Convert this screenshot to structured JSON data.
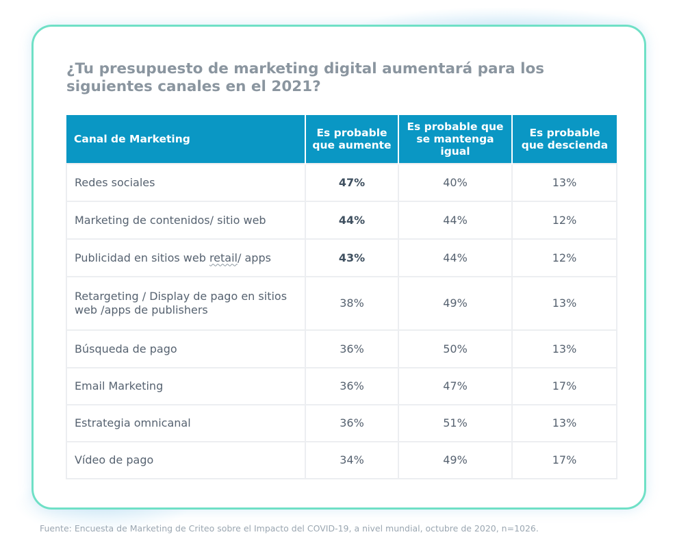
{
  "chart_data": {
    "type": "table",
    "title": "¿Tu presupuesto de marketing digital aumentará para los siguientes canales en el 2021?",
    "columns": [
      "Canal de Marketing",
      "Es probable que aumente",
      "Es probable que se mantenga igual",
      "Es probable que descienda"
    ],
    "rows": [
      {
        "canal": "Redes sociales",
        "aumente": "47%",
        "igual": "40%",
        "descienda": "13%",
        "highlight": true
      },
      {
        "canal": "Marketing de contenidos/ sitio web",
        "aumente": "44%",
        "igual": "44%",
        "descienda": "12%",
        "highlight": true
      },
      {
        "canal": "Publicidad en sitios web retail/ apps",
        "aumente": "43%",
        "igual": "44%",
        "descienda": "12%",
        "highlight": true
      },
      {
        "canal": "Retargeting / Display de pago en sitios web /apps de publishers",
        "aumente": "38%",
        "igual": "49%",
        "descienda": "13%",
        "highlight": false
      },
      {
        "canal": "Búsqueda de pago",
        "aumente": "36%",
        "igual": "50%",
        "descienda": "13%",
        "highlight": false
      },
      {
        "canal": "Email Marketing",
        "aumente": "36%",
        "igual": "47%",
        "descienda": "17%",
        "highlight": false
      },
      {
        "canal": "Estrategia omnicanal",
        "aumente": "36%",
        "igual": "51%",
        "descienda": "13%",
        "highlight": false
      },
      {
        "canal": "Vídeo de pago",
        "aumente": "34%",
        "igual": "49%",
        "descienda": "17%",
        "highlight": false
      }
    ]
  },
  "footer": "Fuente: Encuesta de Marketing de Criteo sobre el Impacto del COVID-19, a nivel mundial, octubre de 2020, n=1026.",
  "colors": {
    "header_bg": "#0a97c4",
    "card_border": "#6fe0c6",
    "title": "#8a959f",
    "body_text": "#566270",
    "highlight_text": "#3e4f5f"
  }
}
